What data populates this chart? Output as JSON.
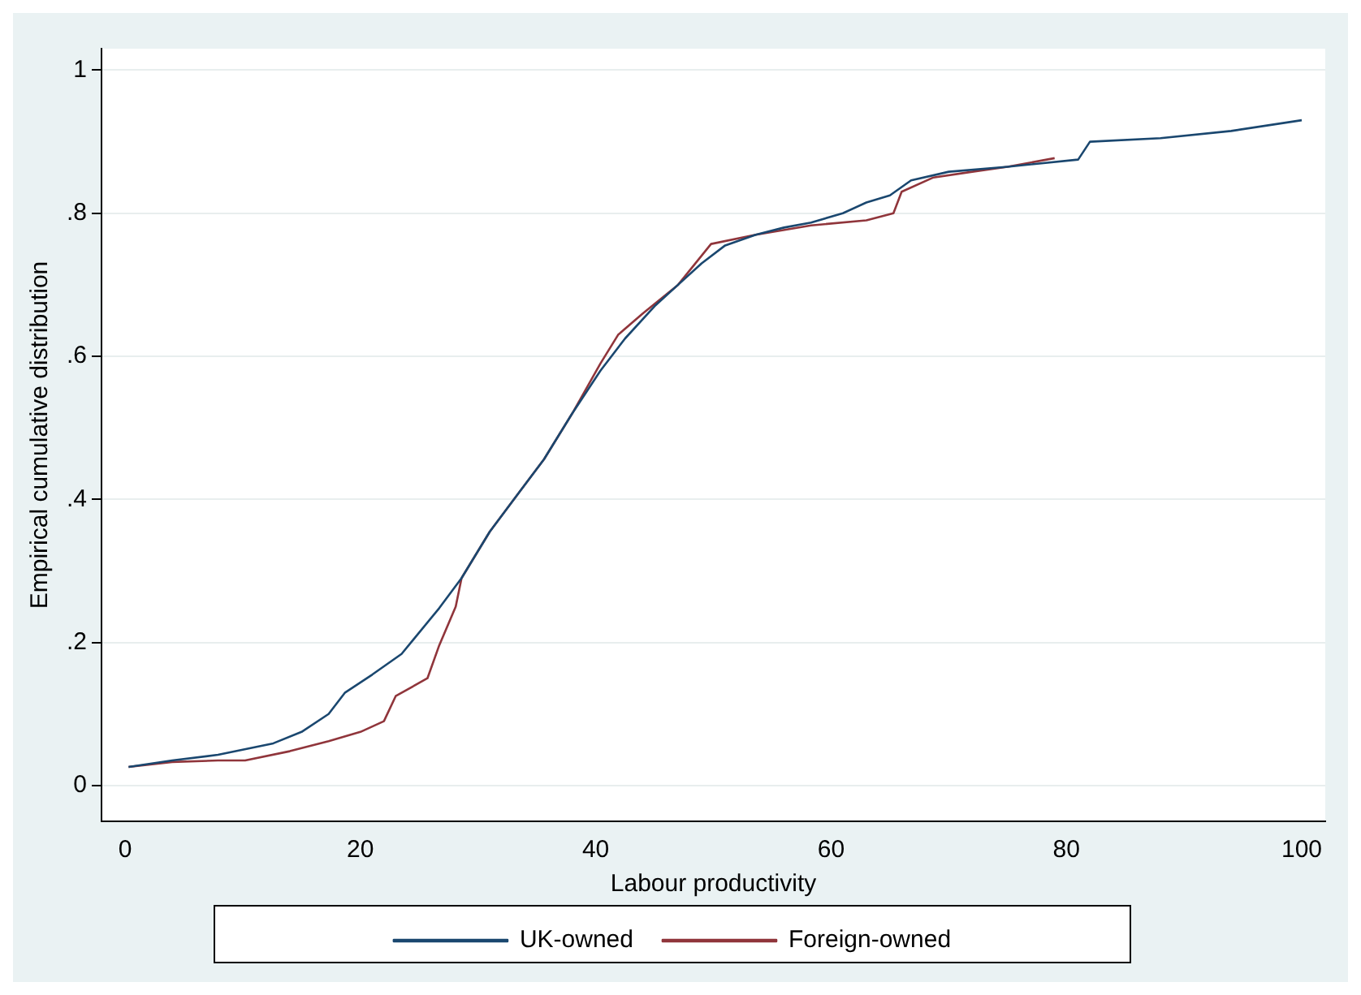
{
  "chart_data": {
    "type": "line",
    "xlabel": "Labour productivity",
    "ylabel": "Empirical cumulative distribution",
    "xlim": [
      -2,
      102
    ],
    "xticks": [
      0,
      20,
      40,
      60,
      80,
      100
    ],
    "ylim": [
      -0.05,
      1.03
    ],
    "yticks": [
      {
        "value": 0,
        "label": "0"
      },
      {
        "value": 0.2,
        "label": ".2"
      },
      {
        "value": 0.4,
        "label": ".4"
      },
      {
        "value": 0.6,
        "label": ".6"
      },
      {
        "value": 0.8,
        "label": ".8"
      },
      {
        "value": 1,
        "label": "1"
      }
    ],
    "grid": "y",
    "legend": "bottom",
    "marker": "none",
    "line_style": "solid",
    "series": [
      {
        "name": "UK-owned",
        "color": "#1a476f",
        "x": [
          0.3,
          4,
          7.9,
          12.6,
          15,
          17.3,
          18.7,
          21,
          23.5,
          26.7,
          28.6,
          31,
          33.5,
          35.6,
          38,
          40.4,
          42.5,
          45,
          47,
          49,
          51,
          53.6,
          56,
          58.3,
          61,
          63,
          65,
          66.8,
          70,
          75,
          81,
          82,
          88,
          94,
          100
        ],
        "values": [
          0.026,
          0.035,
          0.043,
          0.059,
          0.075,
          0.1,
          0.13,
          0.155,
          0.184,
          0.248,
          0.29,
          0.355,
          0.41,
          0.456,
          0.52,
          0.58,
          0.625,
          0.67,
          0.7,
          0.73,
          0.755,
          0.77,
          0.78,
          0.787,
          0.8,
          0.815,
          0.825,
          0.846,
          0.858,
          0.865,
          0.875,
          0.9,
          0.905,
          0.915,
          0.93
        ]
      },
      {
        "name": "Foreign-owned",
        "color": "#90353b",
        "x": [
          0.3,
          4,
          7.9,
          10.2,
          14,
          17.3,
          20,
          22,
          23,
          25.7,
          26.7,
          28.1,
          28.6,
          31,
          33.5,
          35.6,
          38,
          40.4,
          41.9,
          44,
          47,
          49.8,
          53.6,
          58.3,
          63,
          65.3,
          66,
          68.7,
          72,
          75,
          79
        ],
        "values": [
          0.026,
          0.033,
          0.035,
          0.035,
          0.048,
          0.062,
          0.075,
          0.09,
          0.125,
          0.15,
          0.196,
          0.25,
          0.29,
          0.355,
          0.41,
          0.456,
          0.52,
          0.59,
          0.63,
          0.66,
          0.7,
          0.757,
          0.77,
          0.783,
          0.79,
          0.8,
          0.83,
          0.85,
          0.858,
          0.865,
          0.877
        ]
      }
    ]
  }
}
